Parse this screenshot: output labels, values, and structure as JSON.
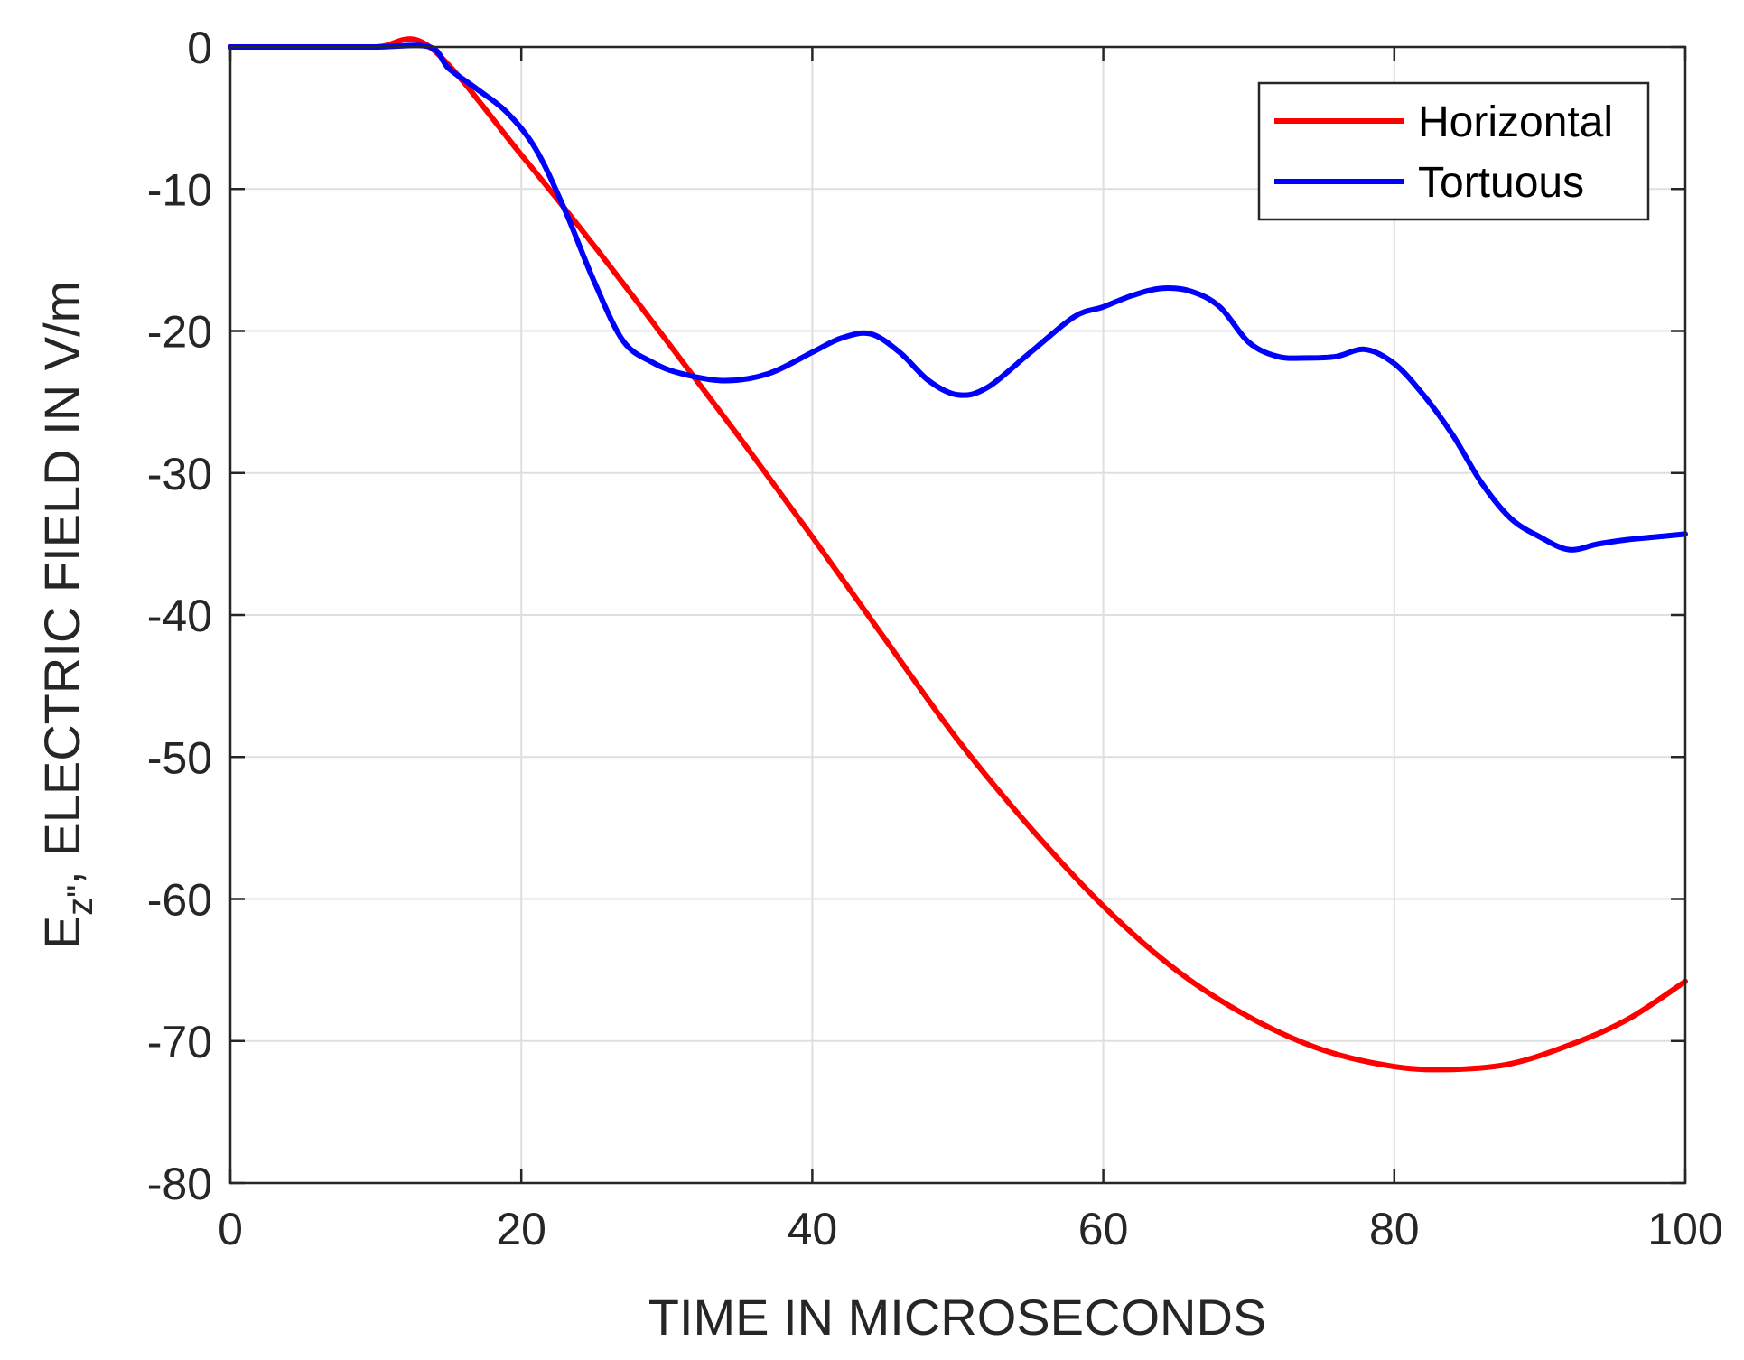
{
  "chart_data": {
    "type": "line",
    "title": "",
    "xlabel": "TIME IN MICROSECONDS",
    "ylabel": {
      "base": "E",
      "subscript": "z\"",
      "suffix": ", ELECTRIC FIELD IN V/m"
    },
    "xlim": [
      0,
      100
    ],
    "ylim": [
      -80,
      0
    ],
    "xticks": [
      0,
      20,
      40,
      60,
      80,
      100
    ],
    "yticks": [
      0,
      -10,
      -20,
      -30,
      -40,
      -50,
      -60,
      -70,
      -80
    ],
    "xtick_labels": [
      "0",
      "20",
      "40",
      "60",
      "80",
      "100"
    ],
    "ytick_labels": [
      "0",
      "-10",
      "-20",
      "-30",
      "-40",
      "-50",
      "-60",
      "-70",
      "-80"
    ],
    "grid": true,
    "legend": {
      "position": "top-right"
    },
    "series": [
      {
        "name": "Horizontal",
        "color": "#ff0000",
        "x": [
          0,
          5,
          10,
          13.7,
          20,
          25,
          30,
          35,
          40,
          45,
          50,
          55,
          60,
          65,
          70,
          75,
          80,
          84,
          88,
          92,
          96,
          100
        ],
        "y": [
          0,
          0,
          0,
          0,
          -7.6,
          -14.0,
          -20.7,
          -27.5,
          -34.5,
          -41.7,
          -48.8,
          -55.0,
          -60.5,
          -65.0,
          -68.3,
          -70.6,
          -71.8,
          -72.0,
          -71.6,
          -70.3,
          -68.5,
          -65.8
        ]
      },
      {
        "name": "Tortuous",
        "color": "#0000ff",
        "x": [
          0,
          5,
          10,
          13.7,
          15,
          17,
          19,
          21,
          23,
          25,
          27,
          29,
          31,
          34,
          37,
          40,
          42,
          44,
          46,
          48,
          50,
          52,
          55,
          58,
          60,
          62,
          64,
          66,
          68,
          70,
          72,
          74,
          76,
          78,
          80,
          82,
          84,
          86,
          88,
          90,
          92,
          94,
          96,
          98,
          100
        ],
        "y": [
          0,
          0,
          0,
          0,
          -1.5,
          -3.0,
          -4.6,
          -7.2,
          -11.5,
          -16.5,
          -20.7,
          -22.2,
          -23.0,
          -23.5,
          -23.0,
          -21.5,
          -20.5,
          -20.2,
          -21.5,
          -23.5,
          -24.5,
          -24.0,
          -21.5,
          -19.0,
          -18.3,
          -17.5,
          -17.0,
          -17.2,
          -18.3,
          -20.8,
          -21.8,
          -21.9,
          -21.8,
          -21.3,
          -22.3,
          -24.5,
          -27.3,
          -30.7,
          -33.2,
          -34.5,
          -35.4,
          -35.0,
          -34.7,
          -34.5,
          -34.3
        ]
      }
    ]
  }
}
